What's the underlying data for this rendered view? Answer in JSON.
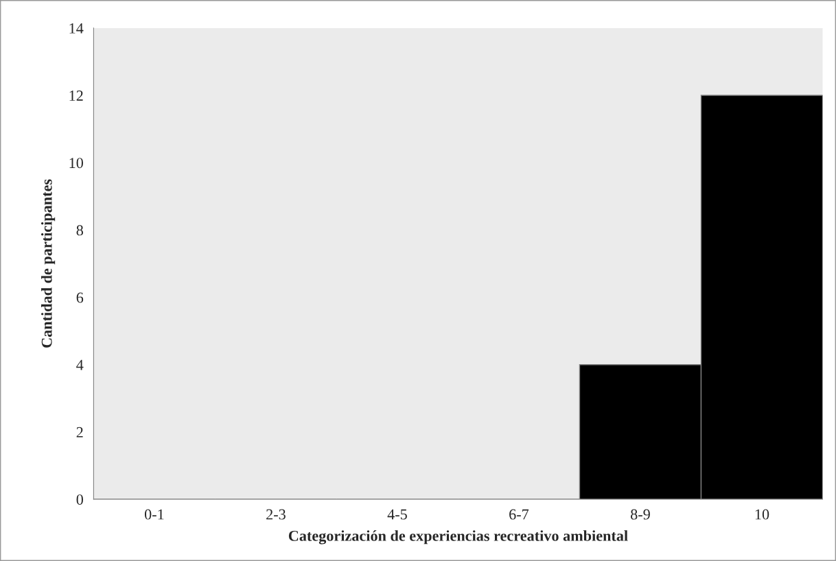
{
  "chart_data": {
    "type": "bar",
    "xlabel": "Categorización de experiencias recreativo ambiental",
    "ylabel": "Cantidad de participantes",
    "categories": [
      "0-1",
      "2-3",
      "4-5",
      "6-7",
      "8-9",
      "10"
    ],
    "values": [
      0,
      0,
      0,
      0,
      4,
      12
    ],
    "color": "#000000",
    "ylim": [
      0,
      14
    ],
    "yticks": [
      0,
      2,
      4,
      6,
      8,
      10,
      12,
      14
    ],
    "grid": false
  }
}
